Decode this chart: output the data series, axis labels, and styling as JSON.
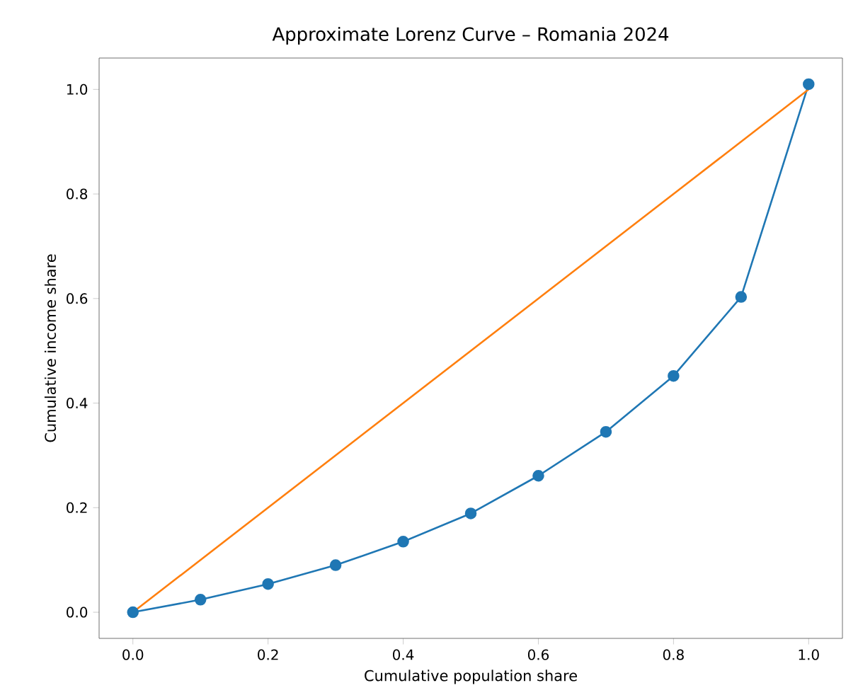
{
  "chart_data": {
    "type": "line",
    "title": "Approximate Lorenz Curve – Romania 2024",
    "xlabel": "Cumulative population share",
    "ylabel": "Cumulative income share",
    "xlim": [
      -0.05,
      1.05
    ],
    "ylim": [
      -0.05,
      1.06
    ],
    "xticks": [
      {
        "value": 0,
        "label": "0.0"
      },
      {
        "value": 0.2,
        "label": "0.2"
      },
      {
        "value": 0.4,
        "label": "0.4"
      },
      {
        "value": 0.6,
        "label": "0.6"
      },
      {
        "value": 0.8,
        "label": "0.8"
      },
      {
        "value": 1,
        "label": "1.0"
      }
    ],
    "yticks": [
      {
        "value": 0,
        "label": "0.0"
      },
      {
        "value": 0.2,
        "label": "0.2"
      },
      {
        "value": 0.4,
        "label": "0.4"
      },
      {
        "value": 0.6,
        "label": "0.6"
      },
      {
        "value": 0.8,
        "label": "0.8"
      },
      {
        "value": 1,
        "label": "1.0"
      }
    ],
    "series": [
      {
        "color": "#1f77b4",
        "marker": "circle",
        "x": [
          0,
          0.1,
          0.2,
          0.3,
          0.4,
          0.5,
          0.6,
          0.7,
          0.8,
          0.9,
          1.0
        ],
        "values": [
          0,
          0.024,
          0.054,
          0.09,
          0.135,
          0.189,
          0.261,
          0.345,
          0.452,
          0.603,
          1.01
        ]
      },
      {
        "color": "#ff7f0e",
        "marker": "none",
        "x": [
          0,
          1
        ],
        "values": [
          0,
          1
        ]
      }
    ]
  }
}
